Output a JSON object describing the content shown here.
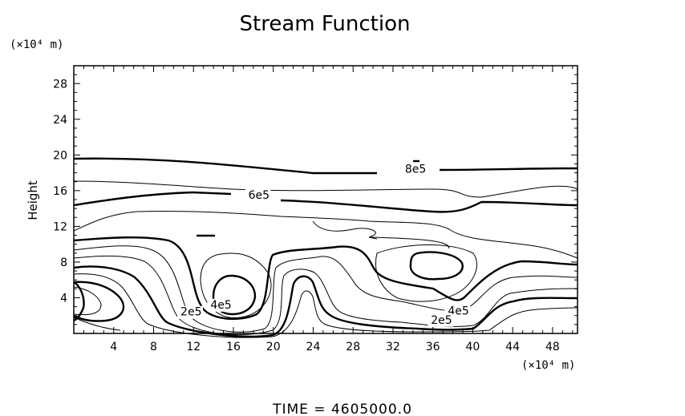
{
  "chart_data": {
    "type": "contour",
    "title": "Stream Function",
    "ylabel": "Height",
    "xunit": "(×10⁴ m)",
    "yunit": "(×10⁴ m)",
    "x_ticks": [
      4,
      8,
      12,
      16,
      20,
      24,
      28,
      32,
      36,
      40,
      44,
      48
    ],
    "y_ticks": [
      4,
      8,
      12,
      16,
      20,
      24,
      28
    ],
    "xlim": [
      0,
      50.5
    ],
    "ylim": [
      0,
      30
    ],
    "contour_labels": [
      {
        "text": "8e5",
        "x": 33.2,
        "y": 18.0
      },
      {
        "text": "6e5",
        "x": 17.5,
        "y": 15.1
      },
      {
        "text": "4e5",
        "x": 13.7,
        "y": 2.8
      },
      {
        "text": "2e5",
        "x": 10.7,
        "y": 2.0
      },
      {
        "text": "4e5",
        "x": 37.5,
        "y": 2.1
      },
      {
        "text": "2e5",
        "x": 35.8,
        "y": 1.1
      }
    ],
    "footer": "TIME  =  4605000.0"
  }
}
